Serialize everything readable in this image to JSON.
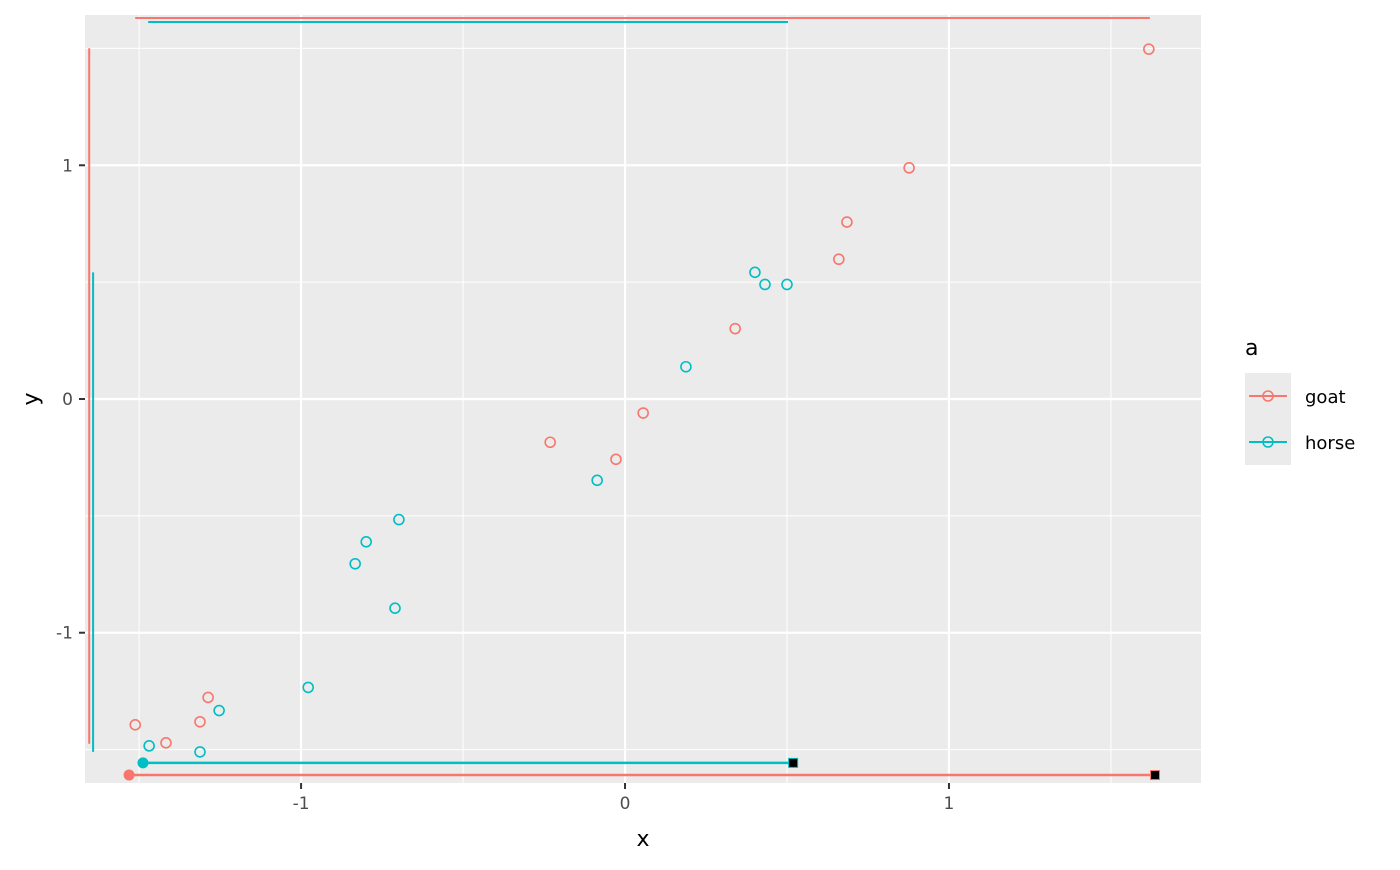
{
  "chart_data": {
    "type": "scatter",
    "xlabel": "x",
    "ylabel": "y",
    "xlim": [
      -1.667,
      1.778
    ],
    "ylim": [
      -1.643,
      1.643
    ],
    "x_ticks": [
      -1,
      0,
      1
    ],
    "x_tick_labels": [
      "-1",
      "0",
      "1"
    ],
    "y_ticks": [
      -1,
      0,
      1
    ],
    "y_tick_labels": [
      "-1",
      "0",
      "1"
    ],
    "grid": true,
    "legend": {
      "title": "a",
      "placement": "right",
      "entries": [
        "goat",
        "horse"
      ]
    },
    "series": [
      {
        "name": "goat",
        "color": "#F8766D",
        "x": [
          -1.512,
          -1.417,
          -1.312,
          -1.287,
          -0.231,
          -0.028,
          0.056,
          0.34,
          0.66,
          0.685,
          0.877,
          1.617
        ],
        "y": [
          -1.394,
          -1.471,
          -1.381,
          -1.277,
          -0.185,
          -0.258,
          -0.06,
          0.301,
          0.598,
          0.757,
          0.989,
          1.497
        ],
        "top_range": {
          "y": 1.63,
          "x": [
            -1.512,
            1.62
          ]
        },
        "left_range": {
          "x": -1.654,
          "y": [
            -1.475,
            1.501
          ]
        },
        "bottom_segment": {
          "y": -1.609,
          "x": [
            -1.531,
            1.636
          ]
        }
      },
      {
        "name": "horse",
        "color": "#00BFC4",
        "x": [
          -1.469,
          -1.312,
          -1.253,
          -0.978,
          -0.833,
          -0.799,
          -0.698,
          -0.71,
          -0.086,
          0.188,
          0.401,
          0.432,
          0.5
        ],
        "y": [
          -1.484,
          -1.51,
          -1.333,
          -1.234,
          -0.705,
          -0.611,
          -0.516,
          -0.895,
          -0.348,
          0.138,
          0.542,
          0.49,
          0.49
        ],
        "top_range": {
          "y": 1.613,
          "x": [
            -1.472,
            0.503
          ]
        },
        "left_range": {
          "x": -1.642,
          "y": [
            -1.51,
            0.542
          ]
        },
        "bottom_segment": {
          "y": -1.557,
          "x": [
            -1.488,
            0.519
          ]
        }
      }
    ]
  }
}
